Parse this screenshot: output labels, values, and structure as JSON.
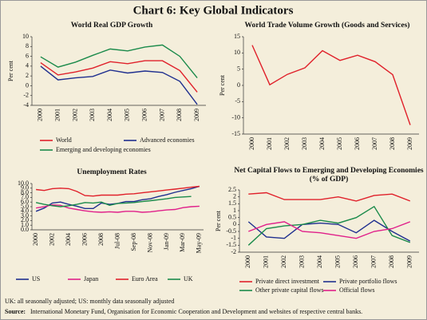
{
  "title": "Chart 6: Key Global Indicators",
  "chart_data": [
    {
      "type": "line",
      "title": "World Real GDP Growth",
      "y_label": "Per cent",
      "categories": [
        "2000",
        "2001",
        "2002",
        "2003",
        "2004",
        "2005",
        "2006",
        "2007",
        "2008",
        "2009"
      ],
      "ylim": [
        -4,
        10
      ],
      "yticks": [
        -4,
        -2,
        0,
        2,
        4,
        6,
        8,
        10
      ],
      "series": [
        {
          "name": "World",
          "color": "#e0202a",
          "values": [
            4.7,
            2.2,
            2.8,
            3.6,
            4.9,
            4.5,
            5.1,
            5.1,
            3.1,
            -1.3
          ]
        },
        {
          "name": "Advanced economies",
          "color": "#1f2f8f",
          "values": [
            4.0,
            1.2,
            1.6,
            1.9,
            3.2,
            2.6,
            3.0,
            2.7,
            0.9,
            -3.8
          ]
        },
        {
          "name": "Emerging and developing economies",
          "color": "#1a8a4a",
          "values": [
            5.9,
            3.8,
            4.8,
            6.2,
            7.5,
            7.1,
            7.9,
            8.3,
            6.0,
            1.6
          ]
        }
      ]
    },
    {
      "type": "line",
      "title": "World Trade Volume Growth (Goods and Services)",
      "y_label": "Per cent",
      "categories": [
        "2000",
        "2001",
        "2002",
        "2003",
        "2004",
        "2005",
        "2006",
        "2007",
        "2008",
        "2009"
      ],
      "ylim": [
        -15,
        15
      ],
      "yticks": [
        -15,
        -10,
        -5,
        0,
        5,
        10,
        15
      ],
      "series": [
        {
          "name": null,
          "color": "#e0202a",
          "values": [
            12.4,
            0.2,
            3.4,
            5.4,
            10.7,
            7.7,
            9.3,
            7.3,
            3.3,
            -12.2
          ]
        }
      ]
    },
    {
      "type": "line",
      "title": "Unemployment Rates",
      "categories": [
        "2000",
        null,
        "2002",
        null,
        "2004",
        null,
        "2006",
        null,
        "2008",
        null,
        "Jul-08",
        null,
        "Sep-08",
        null,
        "Nov-08",
        null,
        "Jan-09",
        null,
        "Mar-09",
        null,
        "May-09"
      ],
      "ylim": [
        0,
        10
      ],
      "yticks": [
        {
          "value": 0,
          "label": "0.0"
        },
        {
          "value": 1,
          "label": "1.0"
        },
        {
          "value": 2,
          "label": "2.0"
        },
        {
          "value": 3,
          "label": "3.0"
        },
        {
          "value": 4,
          "label": "4.0"
        },
        {
          "value": 5,
          "label": "5.0"
        },
        {
          "value": 6,
          "label": "6.0"
        },
        {
          "value": 7,
          "label": "7.0"
        },
        {
          "value": 8,
          "label": "8.0"
        },
        {
          "value": 9,
          "label": "9.0"
        },
        {
          "value": 10,
          "label": "10.0"
        }
      ],
      "series": [
        {
          "name": "US",
          "color": "#1f2f8f",
          "values": [
            4.0,
            4.7,
            5.8,
            6.0,
            5.5,
            5.1,
            4.6,
            4.6,
            5.8,
            5.5,
            5.7,
            6.1,
            6.1,
            6.5,
            6.7,
            7.2,
            7.6,
            8.1,
            8.5,
            8.9,
            9.4
          ]
        },
        {
          "name": "Japan",
          "color": "#e0208a",
          "values": [
            4.7,
            5.0,
            5.4,
            5.3,
            4.7,
            4.4,
            4.1,
            3.9,
            3.8,
            3.9,
            3.8,
            4.0,
            4.0,
            3.8,
            3.9,
            4.1,
            4.3,
            4.4,
            4.8,
            5.0,
            5.1
          ]
        },
        {
          "name": "Euro Area",
          "color": "#e0202a",
          "values": [
            8.7,
            8.5,
            8.9,
            9.0,
            8.9,
            8.3,
            7.4,
            7.3,
            7.5,
            7.5,
            7.5,
            7.7,
            7.8,
            8.0,
            8.2,
            8.4,
            8.6,
            8.8,
            9.0,
            9.2,
            9.4
          ]
        },
        {
          "name": "UK",
          "color": "#1a8a4a",
          "values": [
            5.9,
            5.5,
            5.2,
            5.0,
            5.2,
            5.5,
            5.9,
            5.8,
            6.0,
            5.3,
            5.7,
            5.8,
            5.9,
            6.1,
            6.3,
            6.5,
            6.7,
            7.0,
            7.1,
            7.2,
            null
          ]
        }
      ]
    },
    {
      "type": "line",
      "title": "Net Capital Flows to Emerging and Developing Economies",
      "subtitle": "(% of GDP)",
      "y_label": "Per cent",
      "categories": [
        "2000",
        "2001",
        "2002",
        "2003",
        "2004",
        "2005",
        "2006",
        "2007",
        "2008",
        "2009"
      ],
      "ylim": [
        -2,
        2.5
      ],
      "yticks": [
        -2,
        -1.5,
        -1,
        -0.5,
        0,
        0.5,
        1,
        1.5,
        2,
        2.5
      ],
      "series": [
        {
          "name": "Private direct investment",
          "color": "#e0202a",
          "values": [
            2.2,
            2.3,
            1.8,
            1.8,
            1.8,
            2.0,
            1.7,
            2.1,
            2.2,
            1.7
          ]
        },
        {
          "name": "Private portfolio flows",
          "color": "#1f2f8f",
          "values": [
            0.2,
            -0.9,
            -1.0,
            0.0,
            0.1,
            0.0,
            -0.6,
            0.3,
            -0.5,
            -1.2
          ]
        },
        {
          "name": "Other private capital flows",
          "color": "#1a8a4a",
          "values": [
            -1.5,
            -0.3,
            -0.1,
            0.0,
            0.3,
            0.1,
            0.5,
            1.3,
            -0.8,
            -1.3
          ]
        },
        {
          "name": "Official flows",
          "color": "#e0208a",
          "values": [
            -0.5,
            0.0,
            0.2,
            -0.5,
            -0.6,
            -0.8,
            -1.0,
            -0.5,
            -0.3,
            0.2
          ]
        }
      ]
    }
  ],
  "note": "UK: all seasonally adjusted; US: monthly data seasonally adjusted",
  "source_label": "Source:",
  "source_text": "International Monetary Fund, Organisation for Economic Cooperation and Development and websites of respective central banks."
}
